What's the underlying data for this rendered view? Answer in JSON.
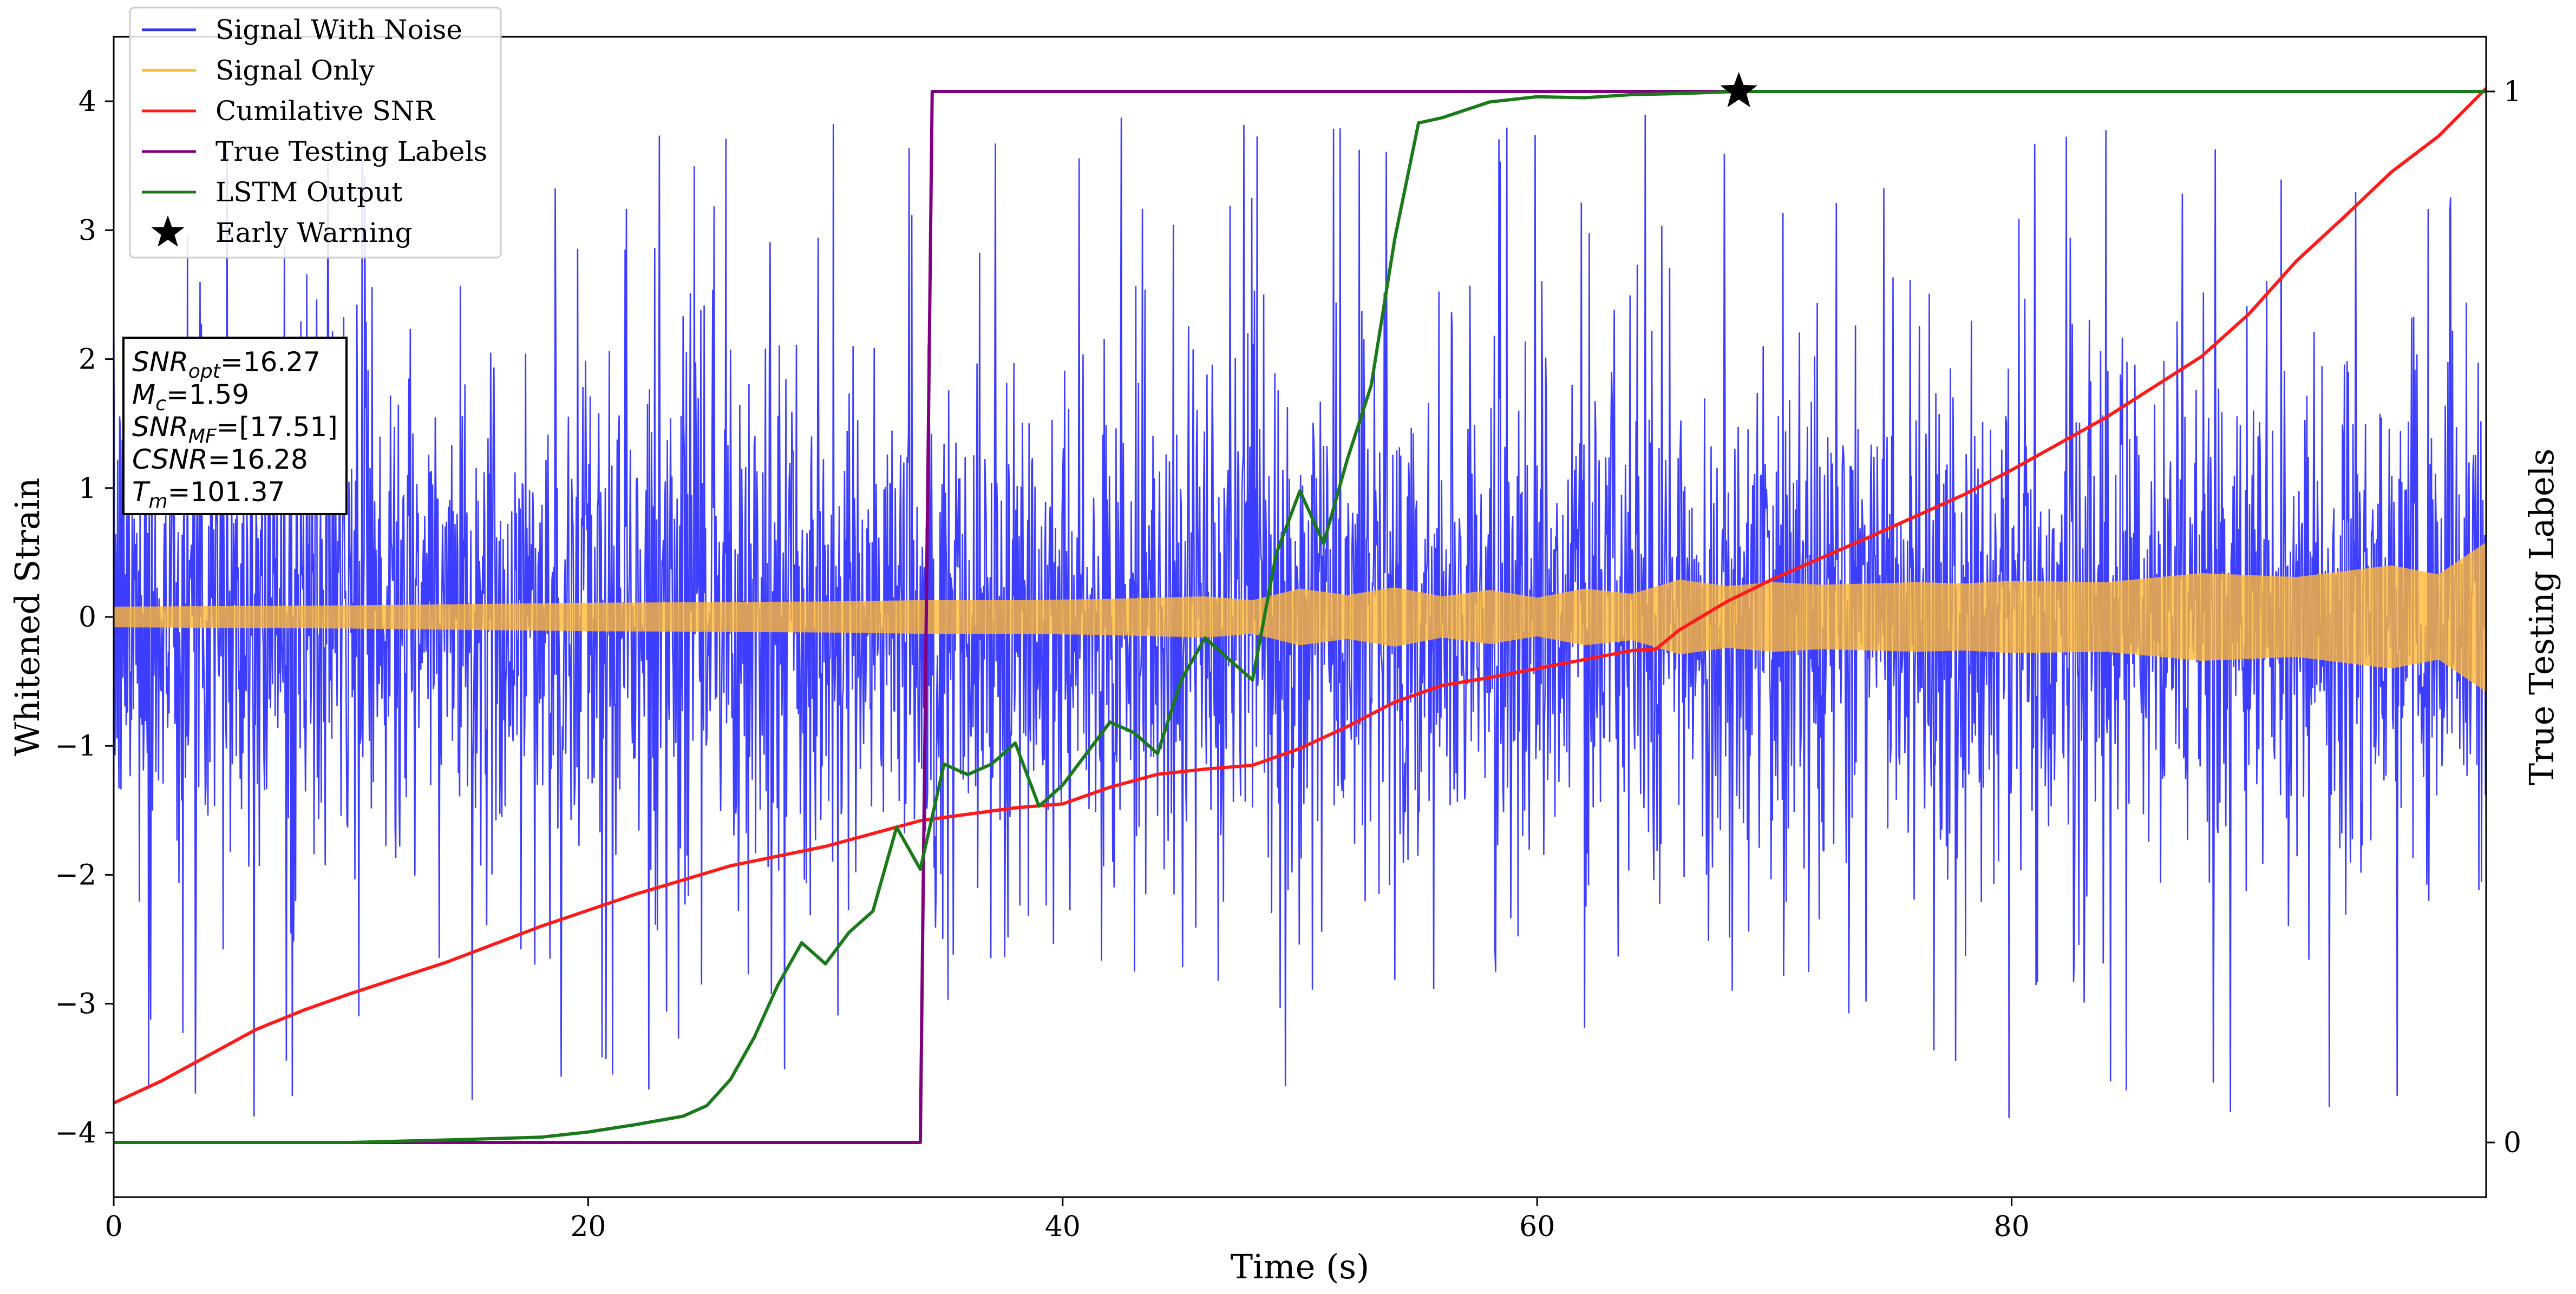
{
  "chart_data": {
    "type": "line",
    "xlabel": "Time (s)",
    "ylabel_left": "Whitened Strain",
    "ylabel_right": "True Testing Labels",
    "xlim": [
      0,
      100
    ],
    "ylim_left": [
      -4.5,
      4.5
    ],
    "ylim_right": [
      -0.052,
      1.052
    ],
    "xticks": [
      0,
      20,
      40,
      60,
      80
    ],
    "yticks_left": [
      -4,
      -3,
      -2,
      -1,
      0,
      1,
      2,
      3,
      4
    ],
    "yticks_right": [
      0,
      1
    ],
    "grid": false,
    "legend_position": "top-left",
    "legend": [
      {
        "label": "Signal With Noise",
        "color": "#3333ff",
        "marker": "line"
      },
      {
        "label": "Signal Only",
        "color": "#ffb833",
        "marker": "line"
      },
      {
        "label": "Cumilative SNR",
        "color": "#ff1a1a",
        "marker": "line"
      },
      {
        "label": "True Testing Labels",
        "color": "#800080",
        "marker": "line"
      },
      {
        "label": "LSTM Output",
        "color": "#1a7a1a",
        "marker": "line"
      },
      {
        "label": "Early Warning",
        "color": "#000000",
        "marker": "star"
      }
    ],
    "series": [
      {
        "name": "Signal With Noise",
        "axis": "left",
        "style": "dense-noise",
        "color": "#3333ff",
        "typical_range": [
          -2.0,
          2.0
        ],
        "peak_range": [
          -4.1,
          3.9
        ]
      },
      {
        "name": "Signal Only",
        "axis": "left",
        "style": "chirp-envelope",
        "color": "#ffb833",
        "x": [
          0,
          10,
          20,
          30,
          34,
          38,
          42,
          46,
          48,
          50,
          52,
          54,
          56,
          58,
          60,
          62,
          64,
          66,
          68,
          70,
          72,
          74,
          76,
          78,
          80,
          84,
          88,
          92,
          96,
          98,
          100
        ],
        "amplitude": [
          0.08,
          0.09,
          0.11,
          0.12,
          0.13,
          0.13,
          0.14,
          0.16,
          0.13,
          0.22,
          0.17,
          0.23,
          0.16,
          0.21,
          0.15,
          0.22,
          0.18,
          0.29,
          0.24,
          0.27,
          0.25,
          0.26,
          0.27,
          0.26,
          0.28,
          0.27,
          0.34,
          0.31,
          0.4,
          0.33,
          0.58
        ]
      },
      {
        "name": "Cumilative SNR",
        "axis": "left",
        "color": "#ff1a1a",
        "x": [
          0,
          2,
          4,
          6,
          8,
          10,
          14,
          18,
          22,
          26,
          30,
          34,
          38,
          40,
          42,
          44,
          46,
          48,
          50,
          52,
          54,
          56,
          58,
          60,
          62,
          64,
          65,
          66,
          68,
          70,
          74,
          78,
          80,
          84,
          88,
          90,
          92,
          94,
          96,
          98,
          100
        ],
        "y": [
          -3.77,
          -3.6,
          -3.4,
          -3.2,
          -3.05,
          -2.92,
          -2.68,
          -2.4,
          -2.15,
          -1.93,
          -1.78,
          -1.58,
          -1.48,
          -1.45,
          -1.32,
          -1.22,
          -1.18,
          -1.15,
          -1.02,
          -0.85,
          -0.66,
          -0.53,
          -0.47,
          -0.4,
          -0.33,
          -0.26,
          -0.25,
          -0.1,
          0.12,
          0.3,
          0.62,
          0.95,
          1.14,
          1.55,
          2.02,
          2.35,
          2.76,
          3.1,
          3.45,
          3.73,
          4.1
        ]
      },
      {
        "name": "True Testing Labels",
        "axis": "right",
        "color": "#800080",
        "x": [
          0,
          34,
          34.5,
          100
        ],
        "y": [
          0,
          0,
          1,
          1
        ]
      },
      {
        "name": "LSTM Output",
        "axis": "right",
        "color": "#1a7a1a",
        "x": [
          0,
          10,
          15,
          18,
          20,
          22,
          24,
          25,
          26,
          27,
          28,
          29,
          30,
          31,
          32,
          33,
          34,
          35,
          36,
          37,
          38,
          39,
          40,
          41,
          42,
          43,
          44,
          45,
          46,
          47,
          48,
          49,
          50,
          51,
          52,
          53,
          54,
          55,
          56,
          58,
          60,
          62,
          64,
          66,
          68.5,
          70,
          80,
          90,
          100
        ],
        "y": [
          0,
          0,
          0.003,
          0.005,
          0.01,
          0.017,
          0.025,
          0.035,
          0.06,
          0.1,
          0.15,
          0.19,
          0.17,
          0.2,
          0.22,
          0.3,
          0.26,
          0.36,
          0.35,
          0.36,
          0.38,
          0.32,
          0.34,
          0.37,
          0.4,
          0.39,
          0.37,
          0.44,
          0.48,
          0.46,
          0.44,
          0.56,
          0.62,
          0.57,
          0.65,
          0.72,
          0.86,
          0.97,
          0.975,
          0.99,
          0.995,
          0.994,
          0.997,
          0.998,
          1,
          1,
          1,
          1,
          1
        ]
      }
    ],
    "annotations": [
      {
        "name": "Early Warning",
        "type": "star-marker",
        "x": 68.5,
        "y_right": 1,
        "color": "#000000"
      }
    ],
    "info_box": {
      "snr_opt_main": "SNR",
      "snr_opt_sub": "opt",
      "snr_opt_value": "=16.27",
      "mc_main": "M",
      "mc_sub": "c",
      "mc_value": "=1.59",
      "snr_mf_main": "SNR",
      "snr_mf_sub": "MF",
      "snr_mf_value": "=[17.51]",
      "csnr_main": "CSNR",
      "csnr_value": "=16.28",
      "tm_main": "T",
      "tm_sub": "m",
      "tm_value": "=101.37"
    }
  }
}
